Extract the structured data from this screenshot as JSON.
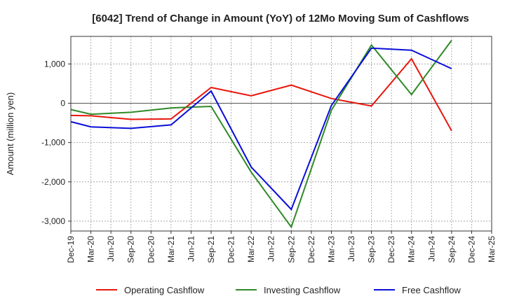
{
  "chart_data": {
    "type": "line",
    "title": "[6042]  Trend of Change in Amount (YoY) of 12Mo Moving Sum of Cashflows",
    "xlabel": "",
    "ylabel": "Amount (million yen)",
    "ylim": [
      -3250,
      1700
    ],
    "yticks": [
      1000,
      0,
      -1000,
      -2000,
      -3000
    ],
    "ytick_labels": [
      "1,000",
      "0",
      "-1,000",
      "-2,000",
      "-3,000"
    ],
    "categories": [
      "Dec-19",
      "Mar-20",
      "Jun-20",
      "Sep-20",
      "Dec-20",
      "Mar-21",
      "Jun-21",
      "Sep-21",
      "Dec-21",
      "Mar-22",
      "Jun-22",
      "Sep-22",
      "Dec-22",
      "Mar-23",
      "Jun-23",
      "Sep-23",
      "Dec-23",
      "Mar-24",
      "Jun-24",
      "Sep-24",
      "Dec-24",
      "Mar-25"
    ],
    "grid": true,
    "legend_position": "bottom",
    "series": [
      {
        "name": "Operating Cashflow",
        "color": "#e8160c",
        "values": [
          -310,
          -320,
          null,
          -410,
          null,
          -400,
          null,
          400,
          null,
          190,
          null,
          460,
          null,
          120,
          null,
          -70,
          null,
          1130,
          null,
          -700,
          null,
          null
        ]
      },
      {
        "name": "Investing Cashflow",
        "color": "#2f8a27",
        "values": [
          -160,
          -280,
          null,
          -230,
          null,
          -120,
          null,
          -80,
          null,
          -1750,
          null,
          -3150,
          null,
          -180,
          null,
          1480,
          null,
          220,
          null,
          1600,
          null,
          null
        ]
      },
      {
        "name": "Free Cashflow",
        "color": "#0a0fd8",
        "values": [
          -470,
          -600,
          null,
          -640,
          null,
          -550,
          null,
          310,
          null,
          -1620,
          null,
          -2700,
          null,
          -60,
          null,
          1400,
          null,
          1350,
          null,
          880,
          null,
          null
        ]
      }
    ]
  }
}
